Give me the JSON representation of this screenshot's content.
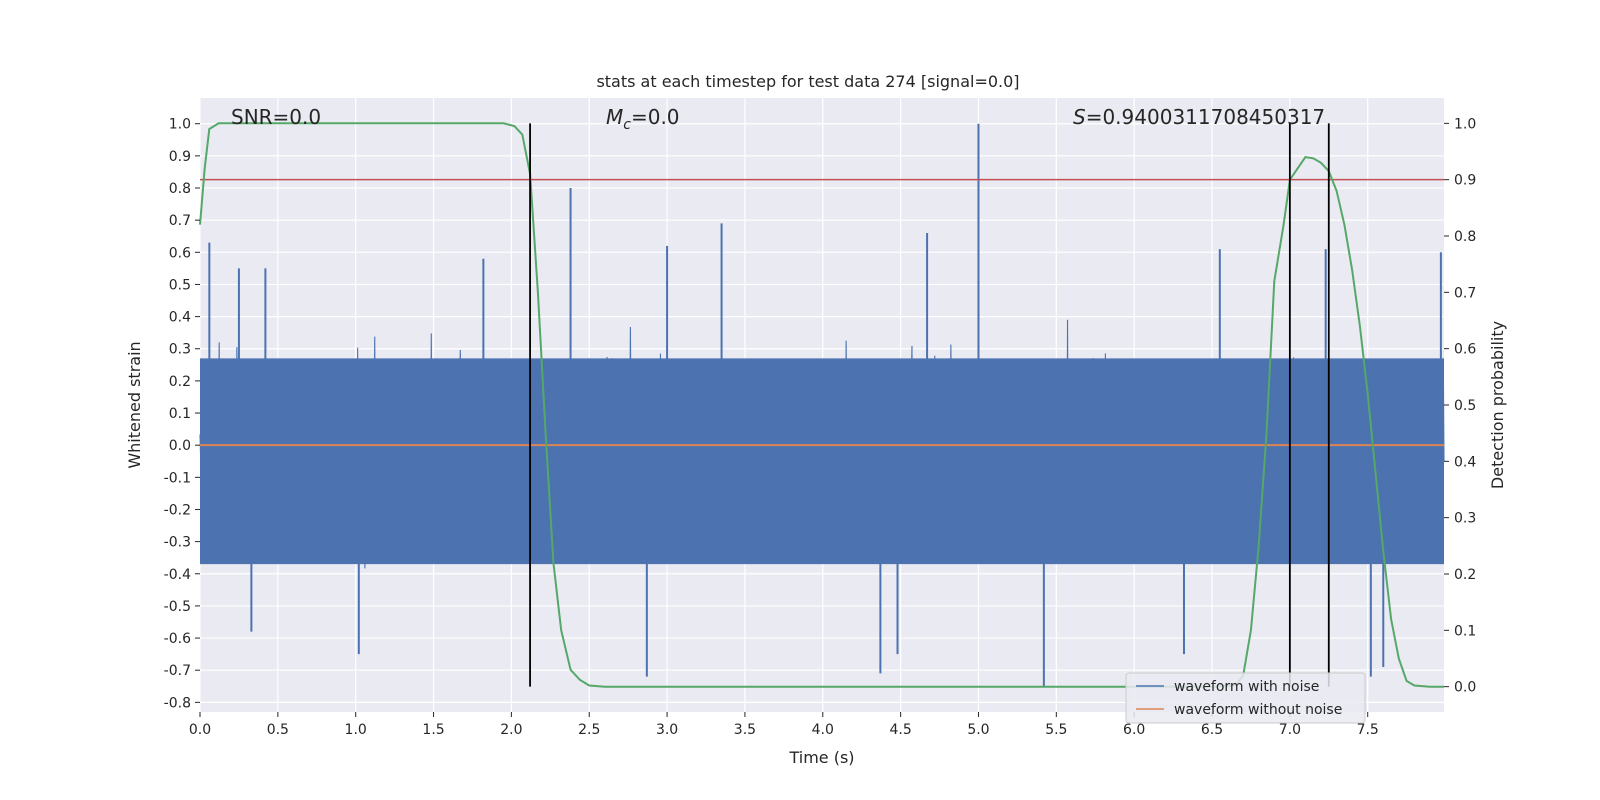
{
  "chart_data": {
    "type": "line",
    "title": "stats at each timestep for test data 274 [signal=0.0]",
    "xlabel": "Time (s)",
    "ylabel_left": "Whitened strain",
    "ylabel_right": "Detection probability",
    "xlim": [
      0.0,
      7.99
    ],
    "ylim_left": [
      -0.83,
      1.08
    ],
    "ylim_right": [
      -0.045,
      1.045
    ],
    "x_ticks": [
      "0.0",
      "0.5",
      "1.0",
      "1.5",
      "2.0",
      "2.5",
      "3.0",
      "3.5",
      "4.0",
      "4.5",
      "5.0",
      "5.5",
      "6.0",
      "6.5",
      "7.0",
      "7.5"
    ],
    "x_tick_values": [
      0.0,
      0.5,
      1.0,
      1.5,
      2.0,
      2.5,
      3.0,
      3.5,
      4.0,
      4.5,
      5.0,
      5.5,
      6.0,
      6.5,
      7.0,
      7.5
    ],
    "y_ticks_left": [
      "1.0",
      "0.9",
      "0.8",
      "0.7",
      "0.6",
      "0.5",
      "0.4",
      "0.3",
      "0.2",
      "0.1",
      "0.0",
      "-0.1",
      "-0.2",
      "-0.3",
      "-0.4",
      "-0.5",
      "-0.6",
      "-0.7",
      "-0.8"
    ],
    "y_tick_values_left": [
      1.0,
      0.9,
      0.8,
      0.7,
      0.6,
      0.5,
      0.4,
      0.3,
      0.2,
      0.1,
      0.0,
      -0.1,
      -0.2,
      -0.3,
      -0.4,
      -0.5,
      -0.6,
      -0.7,
      -0.8
    ],
    "y_ticks_right": [
      "1.0",
      "0.9",
      "0.8",
      "0.7",
      "0.6",
      "0.5",
      "0.4",
      "0.3",
      "0.2",
      "0.1",
      "0.0"
    ],
    "y_tick_values_right": [
      1.0,
      0.9,
      0.8,
      0.7,
      0.6,
      0.5,
      0.4,
      0.3,
      0.2,
      0.1,
      0.0
    ],
    "annotations": {
      "snr": "SNR=0.0",
      "mc_symbol": "M",
      "mc_sub": "c",
      "mc_value": "=0.0",
      "s_symbol": "S",
      "s_value": "=0.9400311708450317"
    },
    "threshold_probability": 0.9,
    "vertical_lines_time": [
      2.12,
      7.0,
      7.25
    ],
    "series": [
      {
        "name": "waveform with noise",
        "color": "#4c72b0",
        "kind": "noise",
        "typical_amplitude": 0.3,
        "max": 1.0,
        "min": -0.75
      },
      {
        "name": "waveform without noise",
        "color": "#dd8452",
        "constant_value": 0.0
      },
      {
        "name": "detection probability",
        "color": "#55a868",
        "axis": "right",
        "x": [
          0.0,
          0.03,
          0.06,
          0.12,
          0.2,
          0.5,
          1.0,
          1.5,
          1.8,
          1.95,
          2.02,
          2.07,
          2.12,
          2.17,
          2.22,
          2.27,
          2.32,
          2.38,
          2.44,
          2.5,
          2.6,
          3.0,
          4.0,
          5.0,
          6.0,
          6.5,
          6.65,
          6.7,
          6.75,
          6.8,
          6.85,
          6.9,
          6.96,
          7.0,
          7.05,
          7.1,
          7.15,
          7.2,
          7.25,
          7.3,
          7.35,
          7.4,
          7.45,
          7.5,
          7.55,
          7.6,
          7.65,
          7.7,
          7.75,
          7.8,
          7.9,
          7.99
        ],
        "y": [
          0.82,
          0.92,
          0.99,
          1.0,
          1.0,
          1.0,
          1.0,
          1.0,
          1.0,
          1.0,
          0.995,
          0.98,
          0.91,
          0.7,
          0.45,
          0.22,
          0.1,
          0.03,
          0.012,
          0.002,
          0.0,
          0.0,
          0.0,
          0.0,
          0.0,
          0.0,
          0.002,
          0.02,
          0.1,
          0.25,
          0.45,
          0.72,
          0.82,
          0.9,
          0.92,
          0.94,
          0.938,
          0.93,
          0.915,
          0.88,
          0.82,
          0.74,
          0.64,
          0.52,
          0.38,
          0.24,
          0.12,
          0.05,
          0.01,
          0.002,
          0.0,
          0.0
        ]
      }
    ],
    "spikes": [
      {
        "x": 0.06,
        "y": 0.63
      },
      {
        "x": 0.25,
        "y": 0.55
      },
      {
        "x": 0.42,
        "y": 0.55
      },
      {
        "x": 1.82,
        "y": 0.58
      },
      {
        "x": 2.38,
        "y": 0.8
      },
      {
        "x": 2.87,
        "y": -0.72
      },
      {
        "x": 3.0,
        "y": 0.62
      },
      {
        "x": 3.35,
        "y": 0.69
      },
      {
        "x": 4.37,
        "y": -0.71
      },
      {
        "x": 4.48,
        "y": -0.65
      },
      {
        "x": 4.67,
        "y": 0.66
      },
      {
        "x": 5.0,
        "y": 1.0
      },
      {
        "x": 5.42,
        "y": -0.75
      },
      {
        "x": 6.55,
        "y": 0.61
      },
      {
        "x": 6.32,
        "y": -0.65
      },
      {
        "x": 7.23,
        "y": 0.61
      },
      {
        "x": 7.52,
        "y": -0.72
      },
      {
        "x": 7.6,
        "y": -0.69
      },
      {
        "x": 7.97,
        "y": 0.6
      },
      {
        "x": 0.33,
        "y": -0.58
      },
      {
        "x": 1.02,
        "y": -0.65
      }
    ],
    "legend": [
      "waveform with noise",
      "waveform without noise"
    ],
    "legend_position": "lower-right",
    "grid": true
  },
  "colors": {
    "axes_bg": "#eaeaf2",
    "grid": "#ffffff",
    "noise": "#4c72b0",
    "clean": "#dd8452",
    "prob": "#55a868",
    "threshold": "#c44e52",
    "vline": "#000000"
  }
}
